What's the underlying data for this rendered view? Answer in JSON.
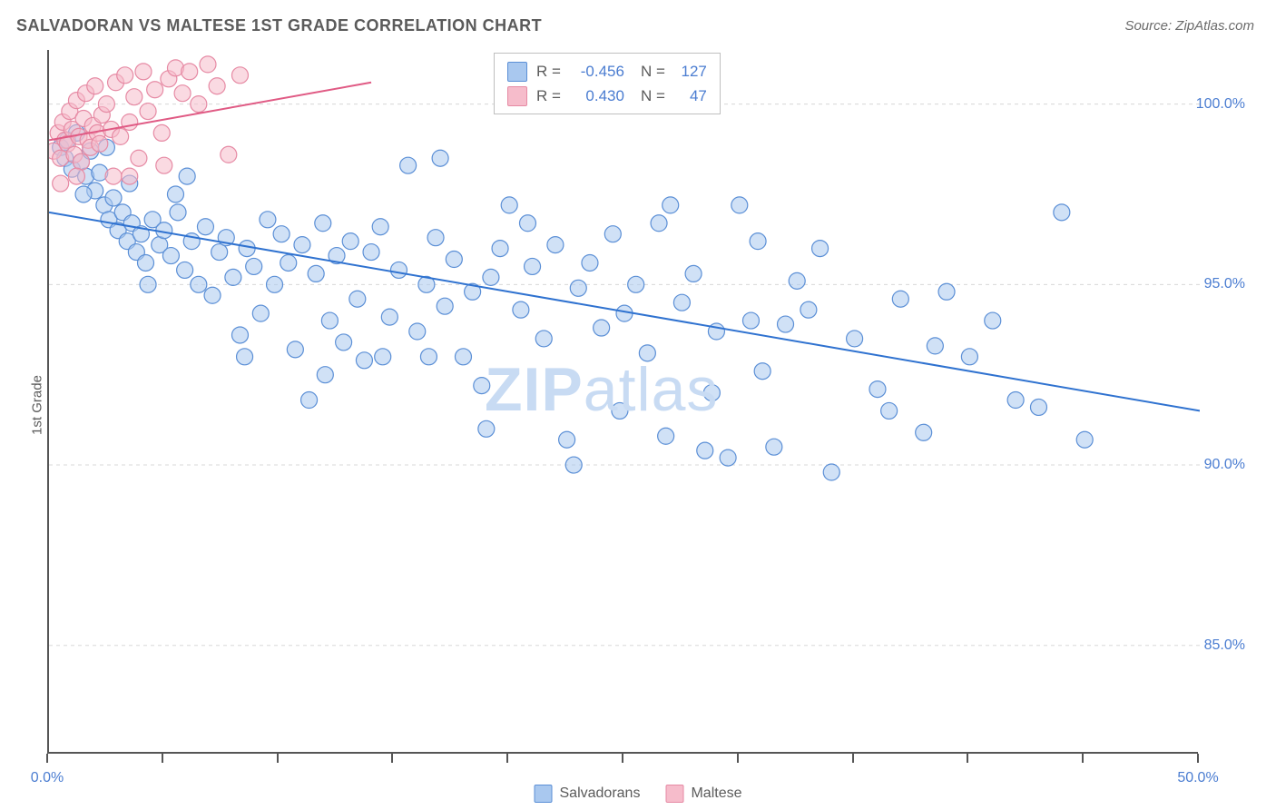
{
  "title": "SALVADORAN VS MALTESE 1ST GRADE CORRELATION CHART",
  "source": "Source: ZipAtlas.com",
  "ylabel": "1st Grade",
  "watermark": {
    "zip": "ZIP",
    "atlas": "atlas"
  },
  "chart": {
    "type": "scatter",
    "xlim": [
      0,
      50
    ],
    "ylim": [
      82,
      101.5
    ],
    "xticks": [
      0,
      5,
      10,
      15,
      20,
      25,
      30,
      35,
      40,
      45,
      50
    ],
    "xtick_labels": {
      "0": "0.0%",
      "50": "50.0%"
    },
    "yticks": [
      85,
      90,
      95,
      100
    ],
    "ytick_labels": {
      "85": "85.0%",
      "90": "90.0%",
      "95": "95.0%",
      "100": "100.0%"
    },
    "grid_color": "#d8d8d8",
    "axis_color": "#555555",
    "marker_radius": 9,
    "marker_opacity": 0.55,
    "line_width": 2,
    "plot_bg": "#ffffff"
  },
  "series": [
    {
      "name": "Salvadorans",
      "fill_color": "#a9c8ef",
      "stroke_color": "#5b8fd6",
      "line_color": "#2f72d0",
      "R": "-0.456",
      "N": "127",
      "trend": {
        "x1": 0,
        "y1": 97.0,
        "x2": 50,
        "y2": 91.5
      },
      "points": [
        [
          0.5,
          98.8
        ],
        [
          0.7,
          98.5
        ],
        [
          0.8,
          99.0
        ],
        [
          1.0,
          98.2
        ],
        [
          1.2,
          99.2
        ],
        [
          1.4,
          98.4
        ],
        [
          1.6,
          98.0
        ],
        [
          1.8,
          98.7
        ],
        [
          2.0,
          97.6
        ],
        [
          2.2,
          98.1
        ],
        [
          2.4,
          97.2
        ],
        [
          2.6,
          96.8
        ],
        [
          2.8,
          97.4
        ],
        [
          3.0,
          96.5
        ],
        [
          3.2,
          97.0
        ],
        [
          3.4,
          96.2
        ],
        [
          3.6,
          96.7
        ],
        [
          3.8,
          95.9
        ],
        [
          4.0,
          96.4
        ],
        [
          4.2,
          95.6
        ],
        [
          4.5,
          96.8
        ],
        [
          4.8,
          96.1
        ],
        [
          5.0,
          96.5
        ],
        [
          5.3,
          95.8
        ],
        [
          5.6,
          97.0
        ],
        [
          5.9,
          95.4
        ],
        [
          6.2,
          96.2
        ],
        [
          6.5,
          95.0
        ],
        [
          6.8,
          96.6
        ],
        [
          7.1,
          94.7
        ],
        [
          7.4,
          95.9
        ],
        [
          7.7,
          96.3
        ],
        [
          8.0,
          95.2
        ],
        [
          8.3,
          93.6
        ],
        [
          8.6,
          96.0
        ],
        [
          8.9,
          95.5
        ],
        [
          9.2,
          94.2
        ],
        [
          9.5,
          96.8
        ],
        [
          9.8,
          95.0
        ],
        [
          10.1,
          96.4
        ],
        [
          10.4,
          95.6
        ],
        [
          10.7,
          93.2
        ],
        [
          11.0,
          96.1
        ],
        [
          11.3,
          91.8
        ],
        [
          11.6,
          95.3
        ],
        [
          11.9,
          96.7
        ],
        [
          12.2,
          94.0
        ],
        [
          12.5,
          95.8
        ],
        [
          12.8,
          93.4
        ],
        [
          13.1,
          96.2
        ],
        [
          13.4,
          94.6
        ],
        [
          13.7,
          92.9
        ],
        [
          14.0,
          95.9
        ],
        [
          14.4,
          96.6
        ],
        [
          14.8,
          94.1
        ],
        [
          15.2,
          95.4
        ],
        [
          15.6,
          98.3
        ],
        [
          16.0,
          93.7
        ],
        [
          16.4,
          95.0
        ],
        [
          16.8,
          96.3
        ],
        [
          17.2,
          94.4
        ],
        [
          17.6,
          95.7
        ],
        [
          18.0,
          93.0
        ],
        [
          18.4,
          94.8
        ],
        [
          18.8,
          92.2
        ],
        [
          19.2,
          95.2
        ],
        [
          19.6,
          96.0
        ],
        [
          20.0,
          97.2
        ],
        [
          20.5,
          94.3
        ],
        [
          21.0,
          95.5
        ],
        [
          21.5,
          93.5
        ],
        [
          22.0,
          96.1
        ],
        [
          22.5,
          90.7
        ],
        [
          23.0,
          94.9
        ],
        [
          23.5,
          95.6
        ],
        [
          24.0,
          93.8
        ],
        [
          24.5,
          96.4
        ],
        [
          25.0,
          94.2
        ],
        [
          25.5,
          95.0
        ],
        [
          26.0,
          93.1
        ],
        [
          26.5,
          96.7
        ],
        [
          27.0,
          97.2
        ],
        [
          27.5,
          94.5
        ],
        [
          28.0,
          95.3
        ],
        [
          28.5,
          90.4
        ],
        [
          29.0,
          93.7
        ],
        [
          29.5,
          90.2
        ],
        [
          30.0,
          97.2
        ],
        [
          30.5,
          94.0
        ],
        [
          31.0,
          92.6
        ],
        [
          31.5,
          90.5
        ],
        [
          32.0,
          93.9
        ],
        [
          32.5,
          95.1
        ],
        [
          33.0,
          94.3
        ],
        [
          34.0,
          89.8
        ],
        [
          35.0,
          93.5
        ],
        [
          36.0,
          92.1
        ],
        [
          37.0,
          94.6
        ],
        [
          38.0,
          90.9
        ],
        [
          39.0,
          94.8
        ],
        [
          40.0,
          93.0
        ],
        [
          41.0,
          94.0
        ],
        [
          42.0,
          91.8
        ],
        [
          43.0,
          91.6
        ],
        [
          44.0,
          97.0
        ],
        [
          45.0,
          90.7
        ],
        [
          33.5,
          96.0
        ],
        [
          19.0,
          91.0
        ],
        [
          8.5,
          93.0
        ],
        [
          5.5,
          97.5
        ],
        [
          6.0,
          98.0
        ],
        [
          4.3,
          95.0
        ],
        [
          3.5,
          97.8
        ],
        [
          2.5,
          98.8
        ],
        [
          1.5,
          97.5
        ],
        [
          12.0,
          92.5
        ],
        [
          14.5,
          93.0
        ],
        [
          16.5,
          93.0
        ],
        [
          17.0,
          98.5
        ],
        [
          20.8,
          96.7
        ],
        [
          22.8,
          90.0
        ],
        [
          24.8,
          91.5
        ],
        [
          26.8,
          90.8
        ],
        [
          28.8,
          92.0
        ],
        [
          30.8,
          96.2
        ],
        [
          36.5,
          91.5
        ],
        [
          38.5,
          93.3
        ]
      ]
    },
    {
      "name": "Maltese",
      "fill_color": "#f6bccb",
      "stroke_color": "#e68aa4",
      "line_color": "#e05a84",
      "R": "0.430",
      "N": "47",
      "trend": {
        "x1": 0,
        "y1": 99.0,
        "x2": 14,
        "y2": 100.6
      },
      "points": [
        [
          0.2,
          98.7
        ],
        [
          0.4,
          99.2
        ],
        [
          0.5,
          98.5
        ],
        [
          0.6,
          99.5
        ],
        [
          0.7,
          99.0
        ],
        [
          0.8,
          98.9
        ],
        [
          0.9,
          99.8
        ],
        [
          1.0,
          99.3
        ],
        [
          1.1,
          98.6
        ],
        [
          1.2,
          100.1
        ],
        [
          1.3,
          99.1
        ],
        [
          1.4,
          98.4
        ],
        [
          1.5,
          99.6
        ],
        [
          1.6,
          100.3
        ],
        [
          1.7,
          99.0
        ],
        [
          1.8,
          98.8
        ],
        [
          1.9,
          99.4
        ],
        [
          2.0,
          100.5
        ],
        [
          2.1,
          99.2
        ],
        [
          2.2,
          98.9
        ],
        [
          2.3,
          99.7
        ],
        [
          2.5,
          100.0
        ],
        [
          2.7,
          99.3
        ],
        [
          2.9,
          100.6
        ],
        [
          3.1,
          99.1
        ],
        [
          3.3,
          100.8
        ],
        [
          3.5,
          99.5
        ],
        [
          3.7,
          100.2
        ],
        [
          3.9,
          98.5
        ],
        [
          4.1,
          100.9
        ],
        [
          4.3,
          99.8
        ],
        [
          4.6,
          100.4
        ],
        [
          4.9,
          99.2
        ],
        [
          5.2,
          100.7
        ],
        [
          5.5,
          101.0
        ],
        [
          5.8,
          100.3
        ],
        [
          6.1,
          100.9
        ],
        [
          6.5,
          100.0
        ],
        [
          6.9,
          101.1
        ],
        [
          7.3,
          100.5
        ],
        [
          7.8,
          98.6
        ],
        [
          8.3,
          100.8
        ],
        [
          5.0,
          98.3
        ],
        [
          2.8,
          98.0
        ],
        [
          1.2,
          98.0
        ],
        [
          0.5,
          97.8
        ],
        [
          3.5,
          98.0
        ]
      ]
    }
  ],
  "top_legend": {
    "R_label": "R =",
    "N_label": "N ="
  },
  "bottom_legend": {
    "items": [
      "Salvadorans",
      "Maltese"
    ]
  }
}
